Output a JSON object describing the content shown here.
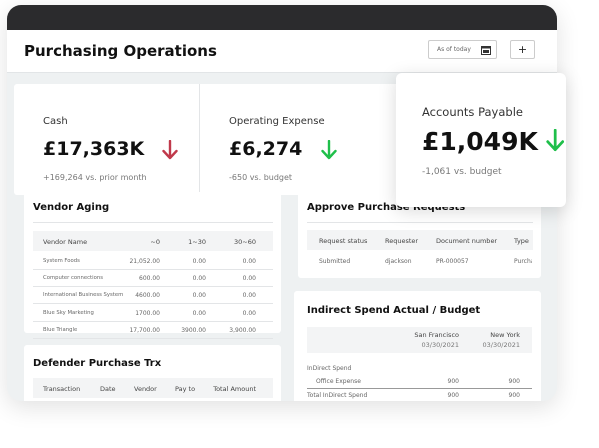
{
  "header": {
    "title": "Purchasing Operations",
    "date_picker": "As of today",
    "add_button": "+"
  },
  "kpis": [
    {
      "label": "Cash",
      "value": "£17,363K",
      "delta": "+169,264 vs. prior month"
    },
    {
      "label": "Operating Expense",
      "value": "£6,274",
      "delta": "-650 vs. budget"
    },
    {
      "label": "Accounts Payable",
      "value": "£1,049K",
      "delta": "-1,061 vs. budget"
    }
  ],
  "vendor_aging": {
    "title": "Vendor Aging",
    "columns": [
      "Vendor Name",
      "~0",
      "1~30",
      "30~60"
    ],
    "rows": [
      [
        "System Foods",
        "21,052.00",
        "0.00",
        "0.00"
      ],
      [
        "Computer connections",
        "600.00",
        "0.00",
        "0.00"
      ],
      [
        "International Business System",
        "4600.00",
        "0.00",
        "0.00"
      ],
      [
        "Blue Sky Marketing",
        "1700.00",
        "0.00",
        "0.00"
      ],
      [
        "Blue Triangle",
        "17,700.00",
        "3900.00",
        "3,900.00"
      ]
    ]
  },
  "approve": {
    "title": "Approve Purchase Requests",
    "columns": [
      "Request status",
      "Requester",
      "Document number",
      "Type"
    ],
    "rows": [
      [
        "Submitted",
        "djackson",
        "PR-000057",
        "Purchase"
      ]
    ]
  },
  "indirect": {
    "title": "Indirect Spend Actual / Budget",
    "columns": [
      [
        "San Francisco",
        "03/30/2021"
      ],
      [
        "New York",
        "03/30/2021"
      ]
    ],
    "rows": [
      [
        "InDirect Spend",
        "",
        ""
      ],
      [
        "Office Expense",
        "900",
        "900"
      ],
      [
        "Total InDirect Spend",
        "900",
        "900"
      ]
    ]
  },
  "defender": {
    "title": "Defender Purchase Trx",
    "columns": [
      "Transaction",
      "Date",
      "Vendor",
      "Pay to",
      "Total Amount"
    ]
  }
}
